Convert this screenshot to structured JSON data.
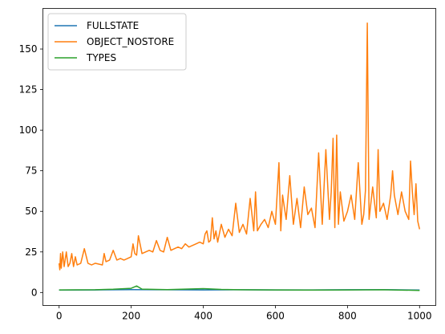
{
  "chart_data": {
    "type": "line",
    "title": "",
    "xlabel": "",
    "ylabel": "",
    "xlim": [
      -45,
      1045
    ],
    "ylim": [
      -8,
      175
    ],
    "x_ticks": [
      0,
      200,
      400,
      600,
      800,
      1000
    ],
    "y_ticks": [
      0,
      25,
      50,
      75,
      100,
      125,
      150
    ],
    "grid": false,
    "legend_position": "top-left",
    "series": [
      {
        "name": "FULLSTATE",
        "color": "#1f77b4",
        "x": [
          0,
          100,
          200,
          300,
          400,
          500,
          600,
          700,
          800,
          900,
          1000
        ],
        "y": [
          1.5,
          1.6,
          1.8,
          1.7,
          1.6,
          1.7,
          1.6,
          1.6,
          1.7,
          1.8,
          1.5
        ]
      },
      {
        "name": "OBJECT_NOSTORE",
        "color": "#ff7f0e",
        "x": [
          0,
          2,
          4,
          6,
          10,
          14,
          20,
          25,
          30,
          35,
          40,
          45,
          50,
          60,
          70,
          80,
          90,
          100,
          120,
          125,
          130,
          140,
          150,
          160,
          170,
          180,
          190,
          200,
          205,
          210,
          215,
          220,
          230,
          240,
          250,
          260,
          270,
          280,
          290,
          300,
          310,
          320,
          330,
          340,
          350,
          360,
          370,
          380,
          390,
          400,
          405,
          410,
          415,
          420,
          425,
          430,
          435,
          440,
          450,
          460,
          470,
          480,
          490,
          500,
          510,
          520,
          530,
          540,
          545,
          550,
          560,
          570,
          580,
          590,
          600,
          610,
          615,
          620,
          630,
          640,
          650,
          660,
          670,
          680,
          690,
          700,
          710,
          720,
          730,
          740,
          750,
          755,
          760,
          765,
          770,
          775,
          780,
          790,
          800,
          810,
          820,
          830,
          840,
          845,
          850,
          855,
          860,
          870,
          880,
          885,
          890,
          900,
          910,
          920,
          925,
          930,
          940,
          950,
          960,
          970,
          975,
          980,
          985,
          990,
          995,
          1000
        ],
        "y": [
          18,
          14,
          24,
          15,
          25,
          16,
          25,
          16,
          18,
          24,
          16,
          22,
          17,
          18,
          27,
          18,
          17,
          18,
          17,
          24,
          19,
          20,
          26,
          20,
          21,
          20,
          21,
          22,
          30,
          24,
          23,
          35,
          24,
          25,
          26,
          25,
          32,
          26,
          25,
          34,
          26,
          27,
          28,
          27,
          30,
          28,
          29,
          30,
          31,
          30,
          36,
          38,
          31,
          32,
          46,
          33,
          38,
          31,
          42,
          34,
          39,
          35,
          55,
          37,
          42,
          36,
          58,
          38,
          62,
          38,
          42,
          45,
          40,
          50,
          42,
          80,
          38,
          60,
          45,
          72,
          42,
          58,
          40,
          65,
          48,
          52,
          40,
          86,
          42,
          88,
          45,
          62,
          95,
          40,
          97,
          42,
          62,
          44,
          50,
          60,
          45,
          80,
          42,
          48,
          63,
          166,
          45,
          65,
          46,
          88,
          50,
          55,
          45,
          60,
          75,
          60,
          48,
          62,
          50,
          45,
          81,
          62,
          48,
          67,
          44,
          39
        ]
      },
      {
        "name": "TYPES",
        "color": "#2ca02c",
        "x": [
          0,
          100,
          150,
          200,
          215,
          230,
          300,
          400,
          450,
          500,
          600,
          700,
          800,
          900,
          1000
        ],
        "y": [
          1.6,
          1.7,
          2.0,
          2.6,
          4.0,
          2.1,
          1.8,
          2.4,
          1.9,
          1.7,
          1.6,
          1.5,
          1.6,
          1.7,
          1.3
        ]
      }
    ]
  }
}
